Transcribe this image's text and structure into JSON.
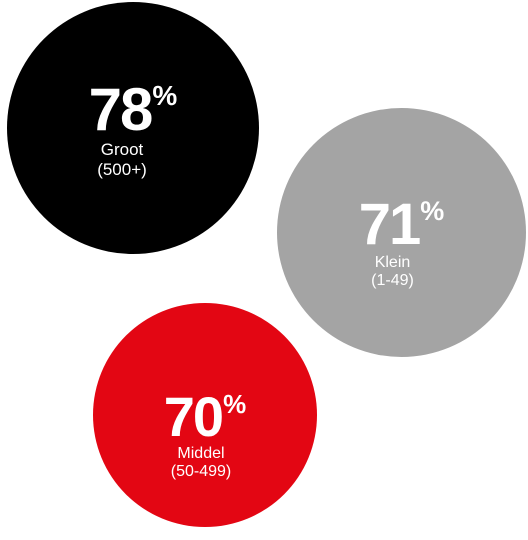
{
  "chart_data": {
    "type": "bubble",
    "unit": "%",
    "series": [
      {
        "value": 78,
        "unit": "%",
        "label": "Groot",
        "range": "(500+)",
        "color": "#000000"
      },
      {
        "value": 71,
        "unit": "%",
        "label": "Klein",
        "range": "(1-49)",
        "color": "#a4a4a4"
      },
      {
        "value": 70,
        "unit": "%",
        "label": "Middel",
        "range": "(50-499)",
        "color": "#e30613"
      }
    ]
  }
}
